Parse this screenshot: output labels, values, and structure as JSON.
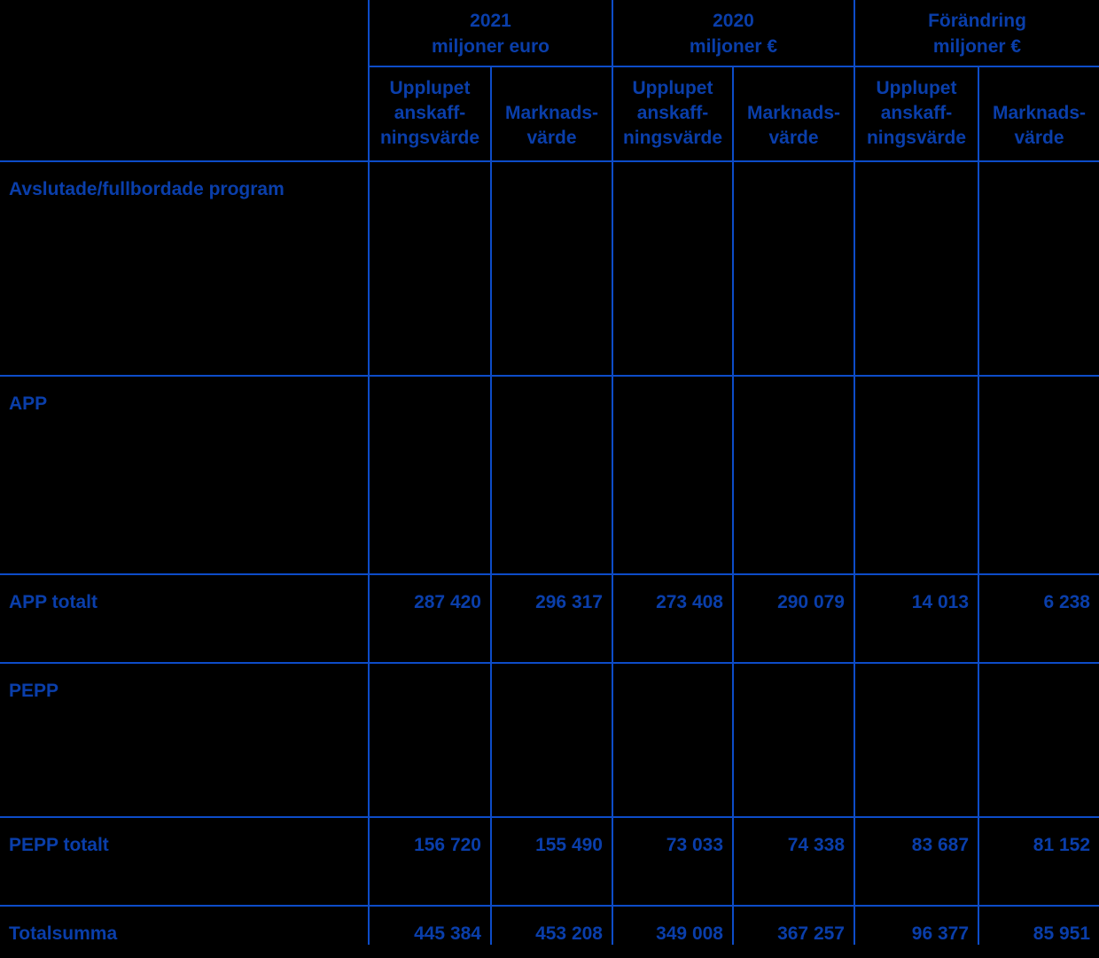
{
  "document": {
    "language": "Swedish",
    "colors": {
      "background": "#000000",
      "grid_line": "#0d4cc8",
      "text": "#0a3eaa"
    },
    "table": {
      "column_groups": [
        {
          "title": "2021\nmiljoner euro"
        },
        {
          "title": "2020\nmiljoner €"
        },
        {
          "title": "Förändring\nmiljoner €"
        }
      ],
      "subheaders": [
        "Upplupet\nanskaff-\nningsvärde",
        "Marknads-\nvärde",
        "Upplupet\nanskaff-\nningsvärde",
        "Marknads-\nvärde",
        "Upplupet\nanskaff-\nningsvärde",
        "Marknads-\nvärde"
      ],
      "rows": [
        {
          "label": "Avslutade/fullbordade program",
          "type": "section-heading",
          "values": [
            "",
            "",
            "",
            "",
            "",
            ""
          ]
        },
        {
          "label": "APP",
          "type": "section-heading",
          "values": [
            "",
            "",
            "",
            "",
            "",
            ""
          ]
        },
        {
          "label": "APP totalt",
          "type": "subtotal",
          "values": [
            "287 420",
            "296 317",
            "273 408",
            "290 079",
            "14 013",
            "6 238"
          ]
        },
        {
          "label": "PEPP",
          "type": "section-heading",
          "values": [
            "",
            "",
            "",
            "",
            "",
            ""
          ]
        },
        {
          "label": "PEPP totalt",
          "type": "subtotal",
          "values": [
            "156 720",
            "155 490",
            "73 033",
            "74 338",
            "83 687",
            "81 152"
          ]
        },
        {
          "label": "Totalsumma",
          "type": "grand-total",
          "values": [
            "445 384",
            "453 208",
            "349 008",
            "367 257",
            "96 377",
            "85 951"
          ]
        }
      ]
    }
  }
}
